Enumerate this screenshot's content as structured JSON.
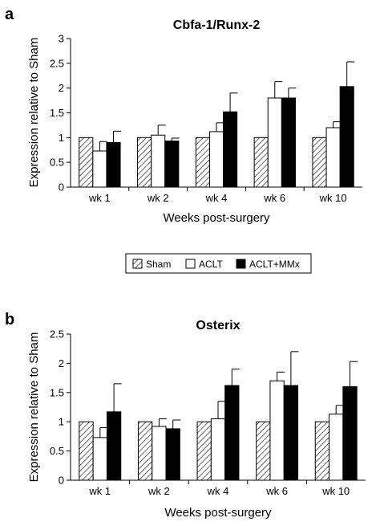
{
  "panels": [
    {
      "letter": "a"
    },
    {
      "letter": "b"
    }
  ],
  "legend": {
    "entries": [
      "Sham",
      "ACLT",
      "ACLT+MMx"
    ]
  },
  "colors": {
    "sham_hatch": "#000000",
    "aclt": "#ffffff",
    "aclt_mmx": "#000000",
    "axis": "#000000"
  },
  "chart_data": [
    {
      "type": "bar",
      "title": "Cbfa-1/Runx-2",
      "xlabel": "Weeks post-surgery",
      "ylabel": "Expression relative to Sham",
      "ylim": [
        0,
        3
      ],
      "yticks": [
        "0",
        "0.5",
        "1",
        "1.5",
        "2",
        "2.5",
        "3"
      ],
      "grid": false,
      "categories": [
        "wk 1",
        "wk 2",
        "wk 4",
        "wk 6",
        "wk 10"
      ],
      "series": [
        {
          "name": "Sham",
          "values": [
            1.0,
            1.0,
            1.0,
            1.0,
            1.0
          ],
          "errors": [
            0,
            0,
            0,
            0,
            0
          ]
        },
        {
          "name": "ACLT",
          "values": [
            0.73,
            1.05,
            1.12,
            1.8,
            1.2
          ],
          "errors": [
            0.19,
            0.2,
            0.18,
            0.33,
            0.12
          ]
        },
        {
          "name": "ACLT+MMx",
          "values": [
            0.9,
            0.93,
            1.52,
            1.8,
            2.03
          ],
          "errors": [
            0.23,
            0.06,
            0.38,
            0.2,
            0.5
          ]
        }
      ]
    },
    {
      "type": "bar",
      "title": "Osterix",
      "xlabel": "Weeks post-surgery",
      "ylabel": "Expression relative to Sham",
      "ylim": [
        0,
        2.5
      ],
      "yticks": [
        "0",
        "0.5",
        "1",
        "1.5",
        "2",
        "2.5"
      ],
      "grid": false,
      "categories": [
        "wk 1",
        "wk 2",
        "wk 4",
        "wk 6",
        "wk 10"
      ],
      "series": [
        {
          "name": "Sham",
          "values": [
            1.0,
            1.0,
            1.0,
            1.0,
            1.0
          ],
          "errors": [
            0,
            0,
            0,
            0,
            0
          ]
        },
        {
          "name": "ACLT",
          "values": [
            0.73,
            0.92,
            1.05,
            1.7,
            1.13
          ],
          "errors": [
            0.17,
            0.13,
            0.3,
            0.15,
            0.15
          ]
        },
        {
          "name": "ACLT+MMx",
          "values": [
            1.17,
            0.88,
            1.62,
            1.62,
            1.6
          ],
          "errors": [
            0.48,
            0.15,
            0.28,
            0.58,
            0.43
          ]
        }
      ]
    }
  ]
}
